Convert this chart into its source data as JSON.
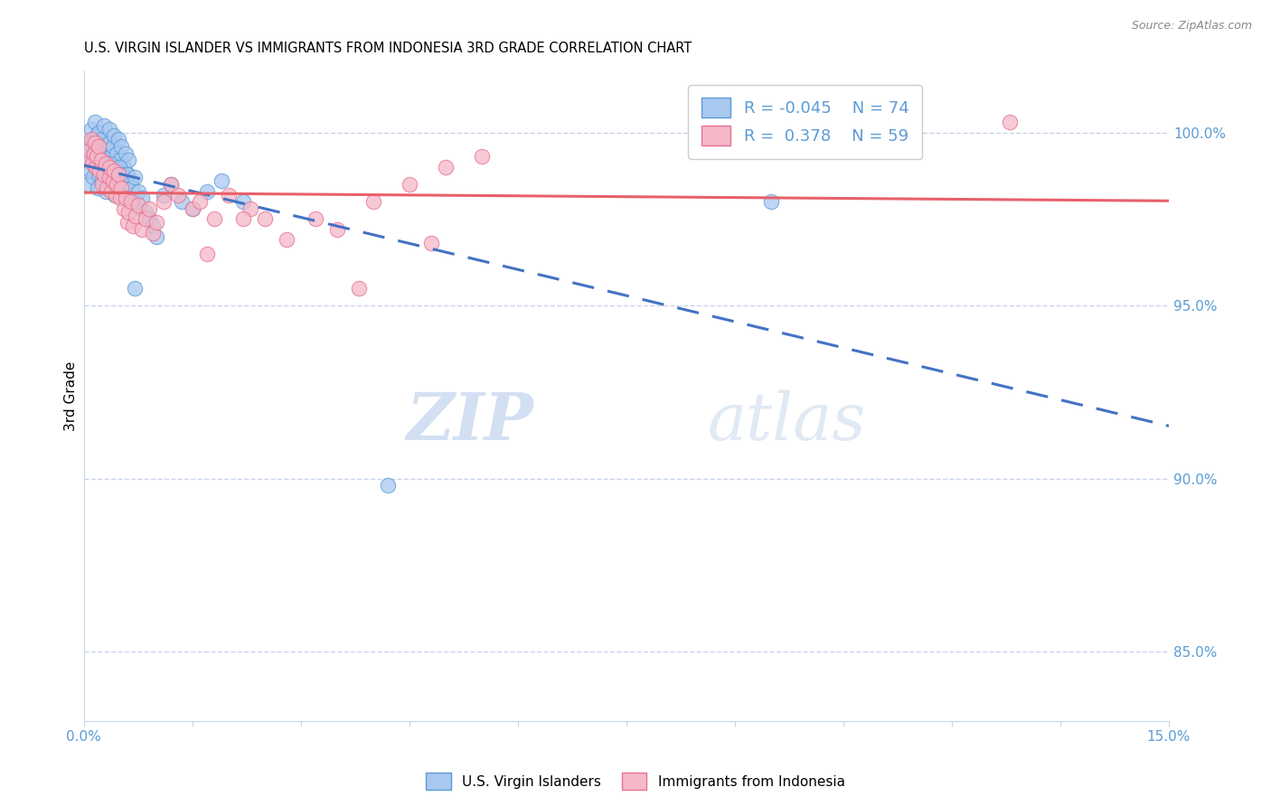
{
  "title": "U.S. VIRGIN ISLANDER VS IMMIGRANTS FROM INDONESIA 3RD GRADE CORRELATION CHART",
  "source": "Source: ZipAtlas.com",
  "ylabel": "3rd Grade",
  "xmin": 0.0,
  "xmax": 15.0,
  "ymin": 83.0,
  "ymax": 101.8,
  "yticks": [
    85.0,
    90.0,
    95.0,
    100.0
  ],
  "blue_color": "#A8C8F0",
  "blue_edge_color": "#5B9BD5",
  "pink_color": "#F4B8C8",
  "pink_edge_color": "#E87090",
  "blue_line_color": "#4472C4",
  "pink_line_color": "#E8606A",
  "legend_blue_label": "U.S. Virgin Islanders",
  "legend_pink_label": "Immigrants from Indonesia",
  "R_blue": -0.045,
  "N_blue": 74,
  "R_pink": 0.378,
  "N_pink": 59,
  "watermark_zip": "ZIP",
  "watermark_atlas": "atlas",
  "grid_color": "#C8D4E8",
  "right_axis_color": "#5B9BD5",
  "blue_x": [
    0.05,
    0.08,
    0.1,
    0.12,
    0.14,
    0.15,
    0.17,
    0.18,
    0.2,
    0.22,
    0.24,
    0.25,
    0.28,
    0.3,
    0.32,
    0.35,
    0.36,
    0.38,
    0.4,
    0.42,
    0.44,
    0.45,
    0.48,
    0.5,
    0.52,
    0.55,
    0.58,
    0.6,
    0.62,
    0.65,
    0.06,
    0.09,
    0.11,
    0.13,
    0.16,
    0.19,
    0.21,
    0.23,
    0.26,
    0.29,
    0.31,
    0.33,
    0.37,
    0.39,
    0.41,
    0.43,
    0.46,
    0.49,
    0.51,
    0.53,
    0.56,
    0.59,
    0.61,
    0.64,
    0.67,
    0.7,
    0.73,
    0.75,
    0.78,
    0.8,
    0.85,
    0.9,
    0.95,
    1.0,
    1.1,
    1.2,
    1.35,
    1.5,
    1.7,
    1.9,
    0.7,
    2.2,
    4.2,
    9.5
  ],
  "blue_y": [
    99.5,
    99.7,
    100.1,
    99.3,
    99.8,
    100.3,
    99.6,
    99.9,
    100.0,
    99.4,
    99.2,
    99.8,
    100.2,
    99.5,
    99.0,
    99.7,
    100.1,
    99.3,
    99.6,
    99.9,
    99.1,
    99.4,
    99.8,
    99.2,
    99.6,
    99.0,
    99.4,
    98.8,
    99.2,
    98.6,
    98.5,
    98.9,
    99.3,
    98.7,
    99.1,
    98.4,
    98.8,
    99.2,
    98.6,
    99.0,
    98.3,
    98.7,
    99.1,
    98.5,
    98.9,
    98.2,
    98.6,
    99.0,
    98.4,
    98.8,
    98.2,
    98.5,
    98.8,
    98.1,
    98.4,
    98.7,
    98.0,
    98.3,
    97.8,
    98.1,
    97.7,
    97.5,
    97.3,
    97.0,
    98.2,
    98.5,
    98.0,
    97.8,
    98.3,
    98.6,
    95.5,
    98.0,
    89.8,
    98.0
  ],
  "pink_x": [
    0.05,
    0.08,
    0.1,
    0.12,
    0.14,
    0.15,
    0.17,
    0.18,
    0.2,
    0.22,
    0.24,
    0.25,
    0.28,
    0.3,
    0.32,
    0.35,
    0.36,
    0.38,
    0.4,
    0.42,
    0.44,
    0.45,
    0.48,
    0.5,
    0.52,
    0.55,
    0.58,
    0.6,
    0.62,
    0.65,
    0.68,
    0.72,
    0.75,
    0.8,
    0.85,
    0.9,
    0.95,
    1.0,
    1.1,
    1.2,
    1.3,
    1.5,
    1.6,
    1.8,
    2.0,
    2.3,
    2.5,
    2.8,
    3.2,
    3.5,
    4.0,
    4.5,
    5.0,
    5.5,
    4.8,
    3.8,
    2.2,
    1.7,
    12.8
  ],
  "pink_y": [
    99.2,
    99.5,
    99.8,
    99.1,
    99.4,
    99.7,
    99.0,
    99.3,
    99.6,
    98.9,
    99.2,
    98.5,
    98.8,
    99.1,
    98.4,
    98.7,
    99.0,
    98.3,
    98.6,
    98.9,
    98.2,
    98.5,
    98.8,
    98.1,
    98.4,
    97.8,
    98.1,
    97.4,
    97.7,
    98.0,
    97.3,
    97.6,
    97.9,
    97.2,
    97.5,
    97.8,
    97.1,
    97.4,
    98.0,
    98.5,
    98.2,
    97.8,
    98.0,
    97.5,
    98.2,
    97.8,
    97.5,
    96.9,
    97.5,
    97.2,
    98.0,
    98.5,
    99.0,
    99.3,
    96.8,
    95.5,
    97.5,
    96.5,
    100.3
  ]
}
